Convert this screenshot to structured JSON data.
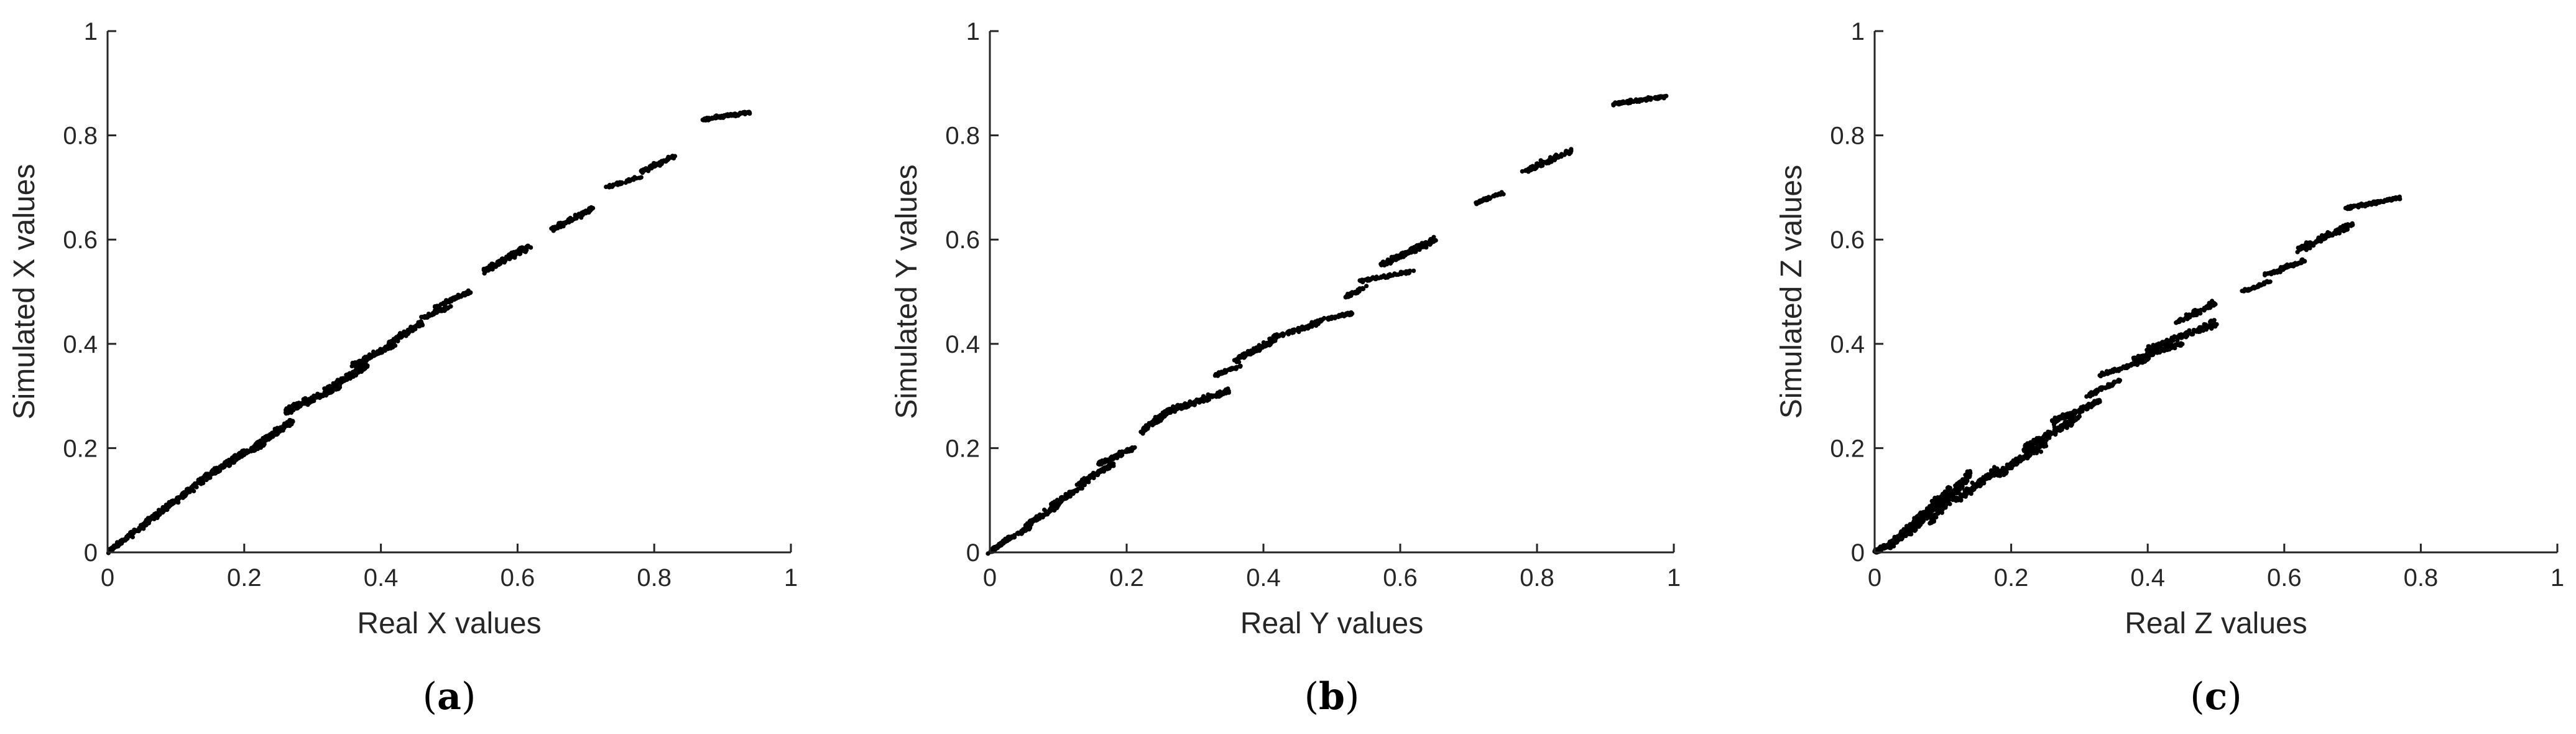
{
  "colors": {
    "point": "#000000",
    "axis": "#262626",
    "background": "#ffffff"
  },
  "chart_data": [
    {
      "type": "scatter",
      "caption": {
        "open": "(",
        "letter": "a",
        "close": ")"
      },
      "xlabel": "Real X values",
      "ylabel": "Simulated X values",
      "xlim": [
        0,
        1
      ],
      "ylim": [
        0,
        1
      ],
      "xticks": [
        "0",
        "0.2",
        "0.4",
        "0.6",
        "0.8",
        "1"
      ],
      "yticks": [
        "0",
        "0.2",
        "0.4",
        "0.6",
        "0.8",
        "1"
      ],
      "grid": false,
      "legend": "none",
      "clusters": [
        {
          "x": [
            0.0,
            0.02
          ],
          "y": [
            0.0,
            0.02
          ],
          "n": 40
        },
        {
          "x": [
            0.02,
            0.06
          ],
          "y": [
            0.02,
            0.06
          ],
          "n": 60
        },
        {
          "x": [
            0.05,
            0.09
          ],
          "y": [
            0.05,
            0.09
          ],
          "n": 70
        },
        {
          "x": [
            0.08,
            0.12
          ],
          "y": [
            0.08,
            0.12
          ],
          "n": 80
        },
        {
          "x": [
            0.11,
            0.16
          ],
          "y": [
            0.11,
            0.16
          ],
          "n": 90
        },
        {
          "x": [
            0.15,
            0.19
          ],
          "y": [
            0.15,
            0.18
          ],
          "n": 90
        },
        {
          "x": [
            0.17,
            0.23
          ],
          "y": [
            0.17,
            0.21
          ],
          "n": 110
        },
        {
          "x": [
            0.21,
            0.27
          ],
          "y": [
            0.2,
            0.25
          ],
          "n": 130
        },
        {
          "x": [
            0.26,
            0.34
          ],
          "y": [
            0.27,
            0.32
          ],
          "n": 180
        },
        {
          "x": [
            0.32,
            0.38
          ],
          "y": [
            0.31,
            0.36
          ],
          "n": 160
        },
        {
          "x": [
            0.36,
            0.42
          ],
          "y": [
            0.36,
            0.4
          ],
          "n": 140
        },
        {
          "x": [
            0.41,
            0.46
          ],
          "y": [
            0.4,
            0.44
          ],
          "n": 110
        },
        {
          "x": [
            0.46,
            0.5
          ],
          "y": [
            0.45,
            0.47
          ],
          "n": 60
        },
        {
          "x": [
            0.48,
            0.53
          ],
          "y": [
            0.47,
            0.5
          ],
          "n": 70
        },
        {
          "x": [
            0.55,
            0.62
          ],
          "y": [
            0.54,
            0.59
          ],
          "n": 130
        },
        {
          "x": [
            0.65,
            0.71
          ],
          "y": [
            0.62,
            0.66
          ],
          "n": 90
        },
        {
          "x": [
            0.73,
            0.78
          ],
          "y": [
            0.7,
            0.72
          ],
          "n": 40
        },
        {
          "x": [
            0.78,
            0.83
          ],
          "y": [
            0.73,
            0.76
          ],
          "n": 80
        },
        {
          "x": [
            0.87,
            0.94
          ],
          "y": [
            0.83,
            0.845
          ],
          "n": 110
        }
      ]
    },
    {
      "type": "scatter",
      "caption": {
        "open": "(",
        "letter": "b",
        "close": ")"
      },
      "xlabel": "Real Y values",
      "ylabel": "Simulated Y values",
      "xlim": [
        0,
        1
      ],
      "ylim": [
        0,
        1
      ],
      "xticks": [
        "0",
        "0.2",
        "0.4",
        "0.6",
        "0.8",
        "1"
      ],
      "yticks": [
        "0",
        "0.2",
        "0.4",
        "0.6",
        "0.8",
        "1"
      ],
      "grid": false,
      "legend": "none",
      "clusters": [
        {
          "x": [
            0.0,
            0.02
          ],
          "y": [
            0.0,
            0.02
          ],
          "n": 40
        },
        {
          "x": [
            0.02,
            0.06
          ],
          "y": [
            0.02,
            0.05
          ],
          "n": 60
        },
        {
          "x": [
            0.05,
            0.1
          ],
          "y": [
            0.05,
            0.09
          ],
          "n": 80
        },
        {
          "x": [
            0.09,
            0.14
          ],
          "y": [
            0.09,
            0.13
          ],
          "n": 90
        },
        {
          "x": [
            0.13,
            0.18
          ],
          "y": [
            0.13,
            0.17
          ],
          "n": 100
        },
        {
          "x": [
            0.16,
            0.21
          ],
          "y": [
            0.17,
            0.2
          ],
          "n": 100
        },
        {
          "x": [
            0.22,
            0.27
          ],
          "y": [
            0.23,
            0.28
          ],
          "n": 110
        },
        {
          "x": [
            0.26,
            0.35
          ],
          "y": [
            0.27,
            0.31
          ],
          "n": 150
        },
        {
          "x": [
            0.33,
            0.37
          ],
          "y": [
            0.34,
            0.36
          ],
          "n": 50
        },
        {
          "x": [
            0.36,
            0.42
          ],
          "y": [
            0.37,
            0.41
          ],
          "n": 120
        },
        {
          "x": [
            0.41,
            0.48
          ],
          "y": [
            0.41,
            0.44
          ],
          "n": 90
        },
        {
          "x": [
            0.47,
            0.53
          ],
          "y": [
            0.44,
            0.46
          ],
          "n": 60
        },
        {
          "x": [
            0.52,
            0.55
          ],
          "y": [
            0.49,
            0.51
          ],
          "n": 30
        },
        {
          "x": [
            0.54,
            0.62
          ],
          "y": [
            0.52,
            0.54
          ],
          "n": 70
        },
        {
          "x": [
            0.57,
            0.65
          ],
          "y": [
            0.55,
            0.6
          ],
          "n": 140
        },
        {
          "x": [
            0.71,
            0.75
          ],
          "y": [
            0.67,
            0.69
          ],
          "n": 50
        },
        {
          "x": [
            0.78,
            0.85
          ],
          "y": [
            0.73,
            0.77
          ],
          "n": 90
        },
        {
          "x": [
            0.91,
            0.99
          ],
          "y": [
            0.86,
            0.875
          ],
          "n": 110
        }
      ]
    },
    {
      "type": "scatter",
      "caption": {
        "open": "(",
        "letter": "c",
        "close": ")"
      },
      "xlabel": "Real Z values",
      "ylabel": "Simulated Z values",
      "xlim": [
        0,
        1
      ],
      "ylim": [
        0,
        1
      ],
      "xticks": [
        "0",
        "0.2",
        "0.4",
        "0.6",
        "0.8",
        "1"
      ],
      "yticks": [
        "0",
        "0.2",
        "0.4",
        "0.6",
        "0.8",
        "1"
      ],
      "grid": false,
      "legend": "none",
      "clusters": [
        {
          "x": [
            0.0,
            0.04
          ],
          "y": [
            0.0,
            0.03
          ],
          "n": 120
        },
        {
          "x": [
            0.02,
            0.07
          ],
          "y": [
            0.01,
            0.07
          ],
          "n": 160
        },
        {
          "x": [
            0.05,
            0.11
          ],
          "y": [
            0.04,
            0.12
          ],
          "n": 200
        },
        {
          "x": [
            0.08,
            0.14
          ],
          "y": [
            0.06,
            0.15
          ],
          "n": 160
        },
        {
          "x": [
            0.12,
            0.18
          ],
          "y": [
            0.1,
            0.16
          ],
          "n": 100
        },
        {
          "x": [
            0.18,
            0.25
          ],
          "y": [
            0.15,
            0.21
          ],
          "n": 150
        },
        {
          "x": [
            0.22,
            0.3
          ],
          "y": [
            0.2,
            0.26
          ],
          "n": 140
        },
        {
          "x": [
            0.26,
            0.33
          ],
          "y": [
            0.25,
            0.29
          ],
          "n": 110
        },
        {
          "x": [
            0.31,
            0.36
          ],
          "y": [
            0.3,
            0.33
          ],
          "n": 60
        },
        {
          "x": [
            0.33,
            0.4
          ],
          "y": [
            0.34,
            0.37
          ],
          "n": 90
        },
        {
          "x": [
            0.38,
            0.45
          ],
          "y": [
            0.37,
            0.4
          ],
          "n": 110
        },
        {
          "x": [
            0.4,
            0.5
          ],
          "y": [
            0.39,
            0.44
          ],
          "n": 140
        },
        {
          "x": [
            0.44,
            0.5
          ],
          "y": [
            0.44,
            0.48
          ],
          "n": 80
        },
        {
          "x": [
            0.54,
            0.58
          ],
          "y": [
            0.5,
            0.52
          ],
          "n": 40
        },
        {
          "x": [
            0.57,
            0.63
          ],
          "y": [
            0.53,
            0.56
          ],
          "n": 70
        },
        {
          "x": [
            0.62,
            0.7
          ],
          "y": [
            0.58,
            0.63
          ],
          "n": 100
        },
        {
          "x": [
            0.69,
            0.77
          ],
          "y": [
            0.66,
            0.68
          ],
          "n": 110
        }
      ]
    }
  ]
}
